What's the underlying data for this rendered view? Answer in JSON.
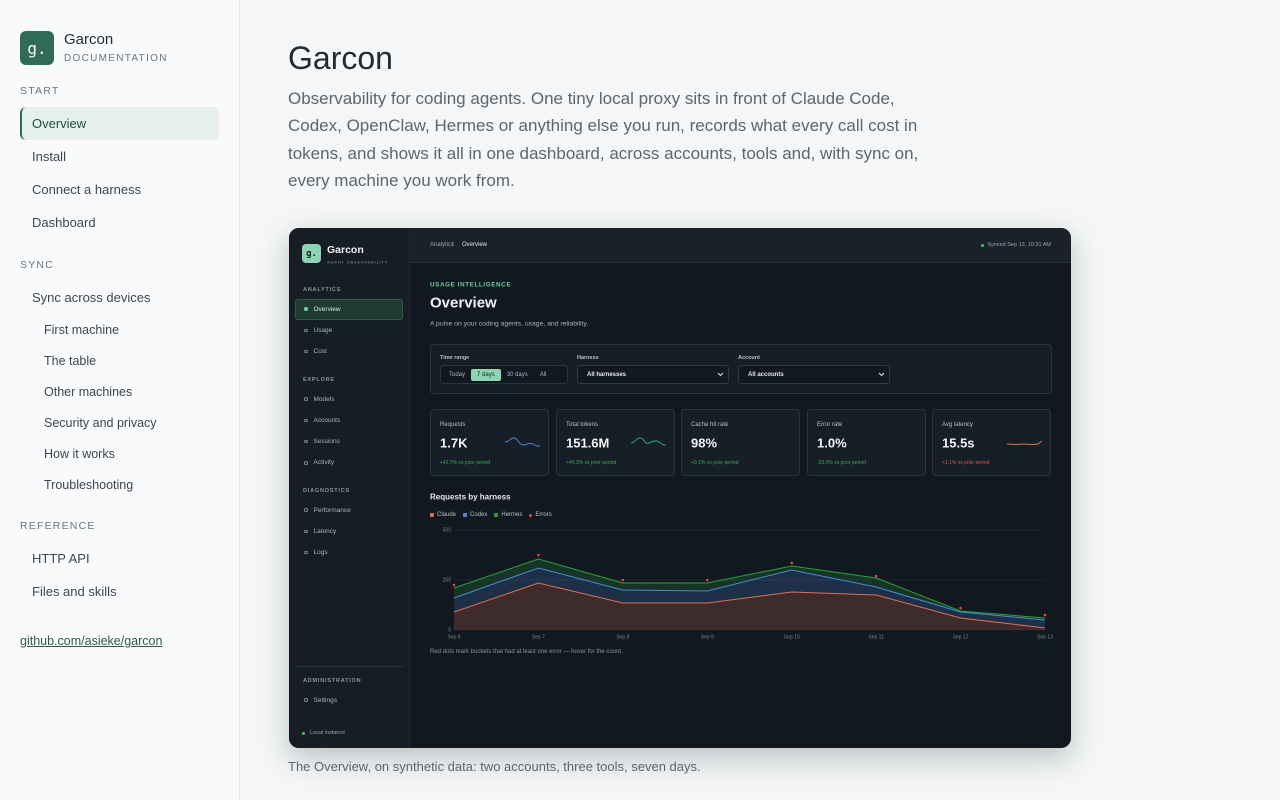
{
  "docs_sidebar": {
    "logo": "g.",
    "name": "Garcon",
    "tagline": "DOCUMENTATION",
    "sections": [
      {
        "title": "START",
        "items": [
          {
            "label": "Overview",
            "active": true
          },
          {
            "label": "Install"
          },
          {
            "label": "Connect a harness"
          },
          {
            "label": "Dashboard"
          }
        ]
      },
      {
        "title": "SYNC",
        "items": [
          {
            "label": "Sync across devices"
          },
          {
            "label": "First machine",
            "nested": true
          },
          {
            "label": "The table",
            "nested": true
          },
          {
            "label": "Other machines",
            "nested": true
          },
          {
            "label": "Security and privacy",
            "nested": true
          },
          {
            "label": "How it works",
            "nested": true
          },
          {
            "label": "Troubleshooting",
            "nested": true
          }
        ]
      },
      {
        "title": "REFERENCE",
        "items": [
          {
            "label": "HTTP API"
          },
          {
            "label": "Files and skills"
          }
        ]
      }
    ],
    "repo_link": "github.com/asieke/garcon"
  },
  "article": {
    "title": "Garcon",
    "intro": "Observability for coding agents. One tiny local proxy sits in front of Claude Code, Codex, OpenClaw, Hermes or anything else you run, records what every call cost in tokens, and shows it all in one dashboard, across accounts, tools and, with sync on, every machine you work from.",
    "figure_caption": "The Overview, on synthetic data: two accounts, three tools, seven days."
  },
  "dashboard": {
    "logo": "g.",
    "name": "Garcon",
    "tagline": "AGENT OBSERVABILITY",
    "nav": [
      {
        "title": "ANALYTICS",
        "items": [
          {
            "label": "Overview",
            "active": true
          },
          {
            "label": "Usage"
          },
          {
            "label": "Cost"
          }
        ]
      },
      {
        "title": "EXPLORE",
        "items": [
          {
            "label": "Models"
          },
          {
            "label": "Accounts"
          },
          {
            "label": "Sessions"
          },
          {
            "label": "Activity"
          }
        ]
      },
      {
        "title": "DIAGNOSTICS",
        "items": [
          {
            "label": "Performance"
          },
          {
            "label": "Latency"
          },
          {
            "label": "Logs"
          }
        ]
      },
      {
        "title": "ADMINISTRATION",
        "items": [
          {
            "label": "Settings"
          }
        ]
      }
    ],
    "instance": "Local instance",
    "breadcrumb": [
      "Analytics",
      "Overview"
    ],
    "breadcrumb_separator": "/",
    "sync_status": "Synced Sep 13, 10:31 AM",
    "eyebrow": "USAGE INTELLIGENCE",
    "title": "Overview",
    "subtitle": "A pulse on your coding agents, usage, and reliability.",
    "filters": {
      "time_range": {
        "label": "Time range",
        "options": [
          "Today",
          "7 days",
          "30 days",
          "All"
        ],
        "selected": 1
      },
      "harness": {
        "label": "Harness",
        "value": "All harnesses"
      },
      "account": {
        "label": "Account",
        "value": "All accounts"
      }
    },
    "kpis": [
      {
        "label": "Requests",
        "value": "1.7K",
        "delta": "+42.7% vs prior period",
        "delta_color": "#3aa85a"
      },
      {
        "label": "Total tokens",
        "value": "151.6M",
        "delta": "+49.3% vs prior period",
        "delta_color": "#3aa85a"
      },
      {
        "label": "Cache hit rate",
        "value": "98%",
        "delta": "+0.1% vs prior period",
        "delta_color": "#3aa85a"
      },
      {
        "label": "Error rate",
        "value": "1.0%",
        "delta": "-20.0% vs prior period",
        "delta_color": "#3aa85a"
      },
      {
        "label": "Avg latency",
        "value": "15.5s",
        "delta": "+1.1% vs prior period",
        "delta_color": "#d9534f"
      }
    ]
  },
  "chart_data": {
    "type": "area",
    "stacked": true,
    "title": "Requests by harness",
    "categories": [
      "Sep 6",
      "Sep 7",
      "Sep 8",
      "Sep 9",
      "Sep 10",
      "Sep 11",
      "Sep 12",
      "Sep 13"
    ],
    "series": [
      {
        "name": "Claude",
        "color": "#e07050",
        "values": [
          90,
          235,
          135,
          135,
          190,
          175,
          60,
          10
        ]
      },
      {
        "name": "Codex",
        "color": "#4a8ad8",
        "values": [
          70,
          75,
          65,
          60,
          110,
          40,
          30,
          40
        ]
      },
      {
        "name": "Hermes",
        "color": "#2aa03a",
        "values": [
          50,
          45,
          35,
          40,
          20,
          45,
          5,
          10
        ]
      },
      {
        "name": "Errors",
        "color": "#e04848",
        "type": "scatter",
        "values": [
          225,
          375,
          250,
          250,
          335,
          270,
          110,
          75
        ]
      }
    ],
    "ylim": [
      0,
      500
    ],
    "yticks": [
      0,
      250,
      500
    ],
    "grid": true,
    "note": "Red dots mark buckets that had at least one error — hover for the count."
  }
}
